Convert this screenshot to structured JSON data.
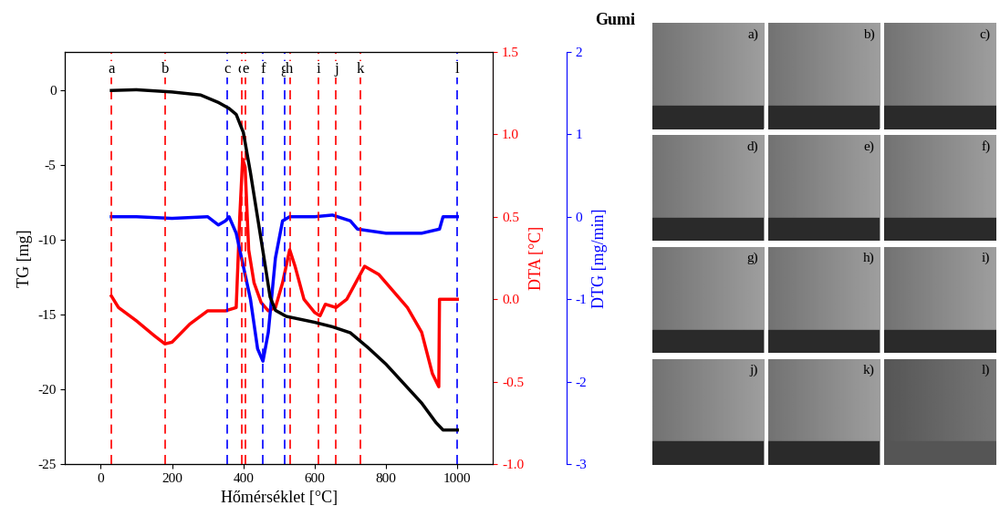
{
  "chart_data": {
    "type": "line",
    "xlabel": "Hőmérséklet [°C]",
    "xlim": [
      -100,
      1100
    ],
    "xticks": [
      0,
      200,
      400,
      600,
      800,
      1000
    ],
    "ylabel": "TG [mg]",
    "ylim": [
      -25,
      2.6
    ],
    "yticks": [
      -25,
      -20,
      -15,
      -10,
      -5,
      0
    ],
    "y2label": "DTA [°C]",
    "y2lim": [
      -1.0,
      1.5
    ],
    "y2ticks": [
      {
        "value": -1.0,
        "label": "-1.0"
      },
      {
        "value": -0.5,
        "label": "-0.5"
      },
      {
        "value": 0.0,
        "label": "0.0"
      },
      {
        "value": 0.5,
        "label": "0.5"
      },
      {
        "value": 1.0,
        "label": "1.0"
      },
      {
        "value": 1.5,
        "label": "1.5"
      }
    ],
    "y3label": "DTG [mg/min]",
    "y3lim": [
      -3,
      2
    ],
    "y3ticks": [
      -3,
      -2,
      -1,
      0,
      1,
      2
    ],
    "series": [
      {
        "color": "#000000",
        "axis": "y",
        "x": [
          30,
          100,
          200,
          280,
          330,
          360,
          380,
          400,
          420,
          440,
          460,
          475,
          490,
          520,
          600,
          650,
          700,
          750,
          800,
          850,
          900,
          940,
          960,
          1000
        ],
        "values": [
          0,
          0.05,
          -0.1,
          -0.3,
          -0.8,
          -1.2,
          -1.6,
          -2.8,
          -5.5,
          -8.5,
          -11.5,
          -13.8,
          -14.7,
          -15.1,
          -15.5,
          -15.8,
          -16.2,
          -17.2,
          -18.3,
          -19.6,
          -20.9,
          -22.2,
          -22.7,
          -22.7
        ]
      },
      {
        "color": "#ff0000",
        "axis": "y2",
        "x": [
          30,
          50,
          100,
          150,
          180,
          200,
          250,
          300,
          350,
          380,
          390,
          398,
          405,
          415,
          430,
          450,
          470,
          490,
          510,
          530,
          545,
          570,
          600,
          615,
          630,
          660,
          690,
          720,
          740,
          780,
          820,
          860,
          900,
          930,
          948,
          950,
          1000
        ],
        "values": [
          0.02,
          -0.05,
          -0.13,
          -0.22,
          -0.27,
          -0.26,
          -0.15,
          -0.07,
          -0.07,
          -0.05,
          0.5,
          0.85,
          0.8,
          0.3,
          0.1,
          -0.02,
          -0.07,
          -0.05,
          0.1,
          0.3,
          0.2,
          0.0,
          -0.08,
          -0.1,
          -0.03,
          -0.05,
          0.0,
          0.12,
          0.2,
          0.15,
          0.05,
          -0.05,
          -0.2,
          -0.45,
          -0.53,
          0.0,
          0.0
        ]
      },
      {
        "color": "#0000ff",
        "axis": "y3",
        "x": [
          30,
          100,
          200,
          300,
          330,
          350,
          360,
          380,
          400,
          420,
          440,
          455,
          470,
          490,
          510,
          530,
          600,
          650,
          700,
          720,
          800,
          900,
          950,
          960,
          1000
        ],
        "values": [
          0,
          0,
          -0.02,
          0,
          -0.1,
          -0.05,
          0,
          -0.2,
          -0.6,
          -1.0,
          -1.6,
          -1.75,
          -1.4,
          -0.5,
          -0.05,
          0,
          0,
          0.02,
          -0.05,
          -0.15,
          -0.2,
          -0.2,
          -0.15,
          0,
          0
        ]
      }
    ],
    "vlines": [
      {
        "x": 30,
        "label": "a",
        "color": "#ff0000"
      },
      {
        "x": 180,
        "label": "b",
        "color": "#ff0000"
      },
      {
        "x": 355,
        "label": "c",
        "color": "#0000ff"
      },
      {
        "x": 395,
        "label": "d",
        "color": "#ff0000"
      },
      {
        "x": 405,
        "label": "e",
        "color": "#ff0000"
      },
      {
        "x": 455,
        "label": "f",
        "color": "#0000ff"
      },
      {
        "x": 515,
        "label": "g",
        "color": "#0000ff"
      },
      {
        "x": 530,
        "label": "h",
        "color": "#ff0000"
      },
      {
        "x": 610,
        "label": "i",
        "color": "#ff0000"
      },
      {
        "x": 660,
        "label": "j",
        "color": "#ff0000"
      },
      {
        "x": 728,
        "label": "k",
        "color": "#ff0000"
      },
      {
        "x": 1000,
        "label": "l",
        "color": "#0000ff"
      }
    ]
  },
  "panel_title": "Gumi",
  "panels": [
    "a)",
    "b)",
    "c)",
    "d)",
    "e)",
    "f)",
    "g)",
    "h)",
    "i)",
    "j)",
    "k)",
    "l)"
  ]
}
